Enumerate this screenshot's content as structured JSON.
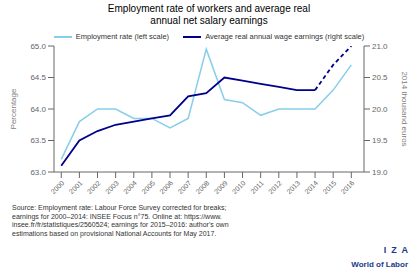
{
  "chart_data": {
    "type": "line",
    "title": "Employment rate of workers and average real\nannual net salary earnings",
    "x": [
      2000,
      2001,
      2002,
      2003,
      2004,
      2005,
      2006,
      2007,
      2008,
      2009,
      2010,
      2011,
      2012,
      2013,
      2014,
      2015,
      2016
    ],
    "xlim": [
      1999.6,
      2016.7
    ],
    "xticks": [
      2000,
      2001,
      2002,
      2003,
      2004,
      2005,
      2006,
      2007,
      2008,
      2009,
      2010,
      2011,
      2012,
      2013,
      2014,
      2015,
      2016
    ],
    "ylim": [
      63.0,
      65.0
    ],
    "yticks": [
      {
        "value": 63.0,
        "label": "63.0"
      },
      {
        "value": 63.5,
        "label": "63.5"
      },
      {
        "value": 64.0,
        "label": "64.0"
      },
      {
        "value": 64.5,
        "label": "64.5"
      },
      {
        "value": 65.0,
        "label": "65.0"
      }
    ],
    "y2lim": [
      19.0,
      21.0
    ],
    "y2ticks": [
      {
        "value": 19.0,
        "label": "19.0"
      },
      {
        "value": 19.5,
        "label": "19.5"
      },
      {
        "value": 20.0,
        "label": "20.0"
      },
      {
        "value": 20.5,
        "label": "20.5"
      },
      {
        "value": 21.0,
        "label": "21.0"
      }
    ],
    "ylabel": "Percentage",
    "y2label": "2014 thousand euros",
    "series": [
      {
        "name": "Employment rate (left scale)",
        "color": "#87CEEB",
        "line_style": "solid",
        "values": [
          63.2,
          63.8,
          64.0,
          64.0,
          63.85,
          63.85,
          63.7,
          63.85,
          64.95,
          64.15,
          64.1,
          63.9,
          64.0,
          64.0,
          64.0,
          64.3,
          64.7
        ]
      },
      {
        "name": "Average real annual wage earnings (right scale)",
        "color": "#00008B",
        "line_style": "solid",
        "axis": "y2",
        "values": [
          19.1,
          19.5,
          19.65,
          19.75,
          19.8,
          19.85,
          19.9,
          20.2,
          20.25,
          20.5,
          20.45,
          20.4,
          20.35,
          20.3,
          20.3,
          null,
          null
        ]
      },
      {
        "name": "Average real annual wage earnings (right scale)",
        "color": "#00008B",
        "line_style": "dashed",
        "axis": "y2",
        "values": [
          null,
          null,
          null,
          null,
          null,
          null,
          null,
          null,
          null,
          null,
          null,
          null,
          null,
          null,
          20.3,
          20.7,
          21.0
        ]
      }
    ],
    "grid": false,
    "legend": "top",
    "annotations": [
      {
        "text": "Source: Employment rate: Labour Force Survey corrected for breaks;\nearnings for 2000–2014: INSEE Focus n°75. Online at: https://www.\ninsee.fr/fr/statistiques/2560524; earnings for 2015–2016: author's own\nestimations based on provisional National Accounts for May 2017.",
        "color": "#333333"
      },
      {
        "text": "I  Z  A",
        "color": "#1a3a8a"
      },
      {
        "text": "World of Labor",
        "color": "#1a3a8a"
      }
    ]
  }
}
